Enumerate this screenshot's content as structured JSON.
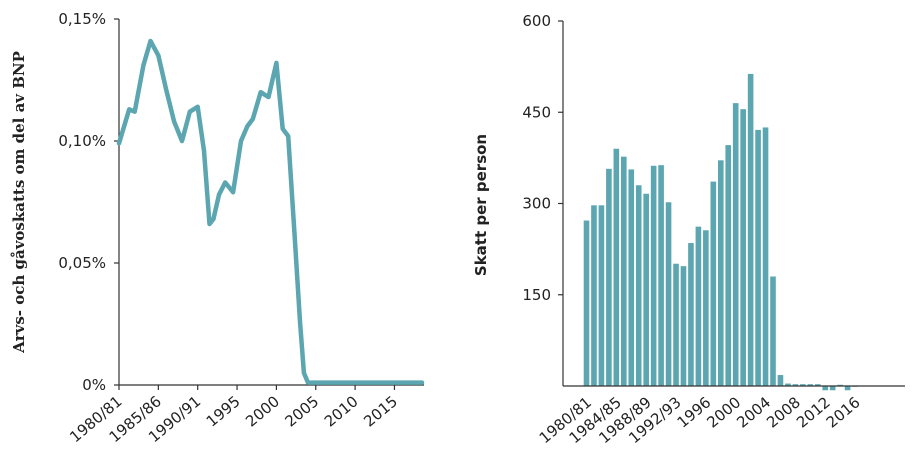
{
  "colors": {
    "series": "#5ba6b0",
    "axis": "#333333",
    "text": "#222222"
  },
  "chart_data": [
    {
      "type": "line",
      "title": "",
      "xlabel": "",
      "ylabel": "Arvs- och gåvoskatts om del av BNP",
      "xlim": [
        1980,
        2018.5
      ],
      "ylim": [
        0,
        0.15
      ],
      "yticks": [
        {
          "value": 0,
          "label": "0%"
        },
        {
          "value": 0.05,
          "label": "0,05%"
        },
        {
          "value": 0.1,
          "label": "0,10%"
        },
        {
          "value": 0.15,
          "label": "0,15%"
        }
      ],
      "xticks": [
        {
          "value": 1980,
          "label": "1980/81"
        },
        {
          "value": 1985,
          "label": "1985/86"
        },
        {
          "value": 1990,
          "label": "1990/91"
        },
        {
          "value": 1995,
          "label": "1995"
        },
        {
          "value": 2000,
          "label": "2000"
        },
        {
          "value": 2005,
          "label": "2005"
        },
        {
          "value": 2010,
          "label": "2010"
        },
        {
          "value": 2015,
          "label": "2015"
        }
      ],
      "x": [
        1980,
        1981.3,
        1982,
        1983.1,
        1984,
        1985,
        1986,
        1987,
        1988,
        1989,
        1990,
        1990.8,
        1991.5,
        1992,
        1992.7,
        1993.5,
        1994.5,
        1995.5,
        1996.3,
        1997,
        1998,
        1999,
        2000,
        2000.8,
        2001.5,
        2002.3,
        2003,
        2003.5,
        2004,
        2004.5,
        2005.3,
        2006,
        2007,
        2010,
        2015,
        2018.5
      ],
      "values": [
        0.099,
        0.113,
        0.112,
        0.131,
        0.141,
        0.135,
        0.121,
        0.108,
        0.1,
        0.112,
        0.114,
        0.096,
        0.066,
        0.068,
        0.078,
        0.083,
        0.079,
        0.1,
        0.106,
        0.109,
        0.12,
        0.118,
        0.132,
        0.105,
        0.102,
        0.062,
        0.026,
        0.005,
        0.001,
        0.001,
        0.001,
        0.001,
        0.001,
        0.001,
        0.001,
        0.001
      ]
    },
    {
      "type": "bar",
      "title": "",
      "xlabel": "",
      "ylabel": "Skatt per person",
      "ylim": [
        0,
        600
      ],
      "yticks": [
        {
          "value": 150,
          "label": "150"
        },
        {
          "value": 300,
          "label": "300"
        },
        {
          "value": 450,
          "label": "450"
        },
        {
          "value": 600,
          "label": "600"
        }
      ],
      "categories": [
        "1980/81",
        "1981/82",
        "1982/83",
        "1983/84",
        "1984/85",
        "1985/86",
        "1986/87",
        "1987/88",
        "1988/89",
        "1989/90",
        "1990/91",
        "1991/92",
        "1992/93",
        "1993/94",
        "1994/95",
        "1995",
        "1996",
        "1997",
        "1998",
        "1999",
        "2000",
        "2001",
        "2002",
        "2003",
        "2004",
        "2005",
        "2006",
        "2007",
        "2008",
        "2009",
        "2010",
        "2011",
        "2012",
        "2013",
        "2014",
        "2015",
        "2016"
      ],
      "xtick_labels": [
        {
          "index": 0,
          "label": "1980/81"
        },
        {
          "index": 4,
          "label": "1984/85"
        },
        {
          "index": 8,
          "label": "1988/89"
        },
        {
          "index": 12,
          "label": "1992/93"
        },
        {
          "index": 16,
          "label": "1996"
        },
        {
          "index": 20,
          "label": "2000"
        },
        {
          "index": 24,
          "label": "2004"
        },
        {
          "index": 28,
          "label": "2008"
        },
        {
          "index": 32,
          "label": "2012"
        },
        {
          "index": 36,
          "label": "2016"
        }
      ],
      "values": [
        272,
        297,
        297,
        357,
        390,
        377,
        356,
        330,
        316,
        362,
        363,
        302,
        201,
        197,
        235,
        262,
        256,
        336,
        371,
        396,
        465,
        455,
        513,
        421,
        425,
        180,
        18,
        4,
        3,
        3,
        3,
        3,
        -7,
        -7,
        2,
        -7,
        0
      ]
    }
  ]
}
